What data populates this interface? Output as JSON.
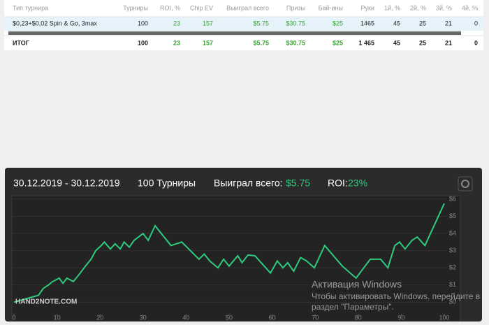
{
  "table": {
    "headers": [
      "Тип турнира",
      "Турниры",
      "ROI, %",
      "Chip EV",
      "Выиграл всего",
      "Призы",
      "Бай-ины",
      "Руки",
      "1й, %",
      "2й, %",
      "3й, %",
      "4й, %"
    ],
    "rows": [
      [
        "$0,23+$0,02 Spin & Go, 3max",
        "100",
        "23",
        "157",
        "$5.75",
        "$30.75",
        "$25",
        "1465",
        "45",
        "25",
        "21",
        "0"
      ],
      [
        "ИТОГ",
        "100",
        "23",
        "157",
        "$5.75",
        "$30.75",
        "$25",
        "1 465",
        "45",
        "25",
        "21",
        "0"
      ]
    ]
  },
  "summary": {
    "period": "30.12.2019 - 30.12.2019",
    "tournaments": "100 Турниры",
    "won_label": "Выиграл всего:",
    "won_value": "$5.75",
    "roi_label": "ROI:",
    "roi_value": "23%"
  },
  "logo": "HAND2NOTE.COM",
  "watermark": {
    "title": "Активация Windows",
    "line1": "Чтобы активировать Windows, перейдите в",
    "line2": "раздел \"Параметры\"."
  },
  "chart_data": {
    "type": "line",
    "color": "#2ecb7e",
    "grid": true,
    "x": [
      0,
      5.7,
      6.8,
      8,
      9,
      10.5,
      11.4,
      12.3,
      13.8,
      15.4,
      16.6,
      17.9,
      19,
      20.3,
      21,
      22.4,
      23.5,
      24.7,
      25.6,
      26.8,
      27.9,
      30,
      31.2,
      32.8,
      36.5,
      39,
      43,
      44.2,
      45.5,
      47.4,
      48.7,
      50,
      52,
      53,
      54.4,
      56,
      59.6,
      61.2,
      62.5,
      63.6,
      65,
      66.6,
      68,
      69.8,
      72.2,
      76.3,
      79.5,
      82.8,
      85.2,
      86.9,
      88.5,
      89.6,
      90.9,
      92.5,
      93.7,
      95.5,
      100
    ],
    "values": [
      0,
      0.4,
      0.8,
      1.0,
      1.2,
      1.4,
      1.1,
      1.4,
      1.2,
      1.7,
      2.1,
      2.5,
      3.0,
      3.3,
      3.5,
      3.1,
      3.4,
      3.1,
      3.5,
      3.2,
      3.6,
      4.0,
      3.6,
      4.45,
      3.3,
      3.5,
      2.5,
      2.8,
      2.4,
      2.0,
      2.5,
      2.1,
      2.7,
      2.3,
      2.75,
      2.7,
      1.7,
      2.4,
      2.0,
      2.3,
      1.8,
      2.6,
      2.4,
      2.0,
      3.3,
      2.1,
      1.4,
      2.5,
      2.5,
      2.0,
      3.3,
      3.5,
      3.1,
      3.6,
      3.8,
      3.3,
      5.75
    ],
    "xlim": [
      0,
      100
    ],
    "xticks": [
      0,
      10,
      20,
      30,
      40,
      50,
      60,
      70,
      80,
      90,
      100
    ],
    "ylim": [
      -0.8,
      6.2
    ],
    "yticks": [
      {
        "value": 0,
        "label": "$0"
      },
      {
        "value": 1,
        "label": "$1"
      },
      {
        "value": 2,
        "label": "$2"
      },
      {
        "value": 3,
        "label": "$3"
      },
      {
        "value": 4,
        "label": "$4"
      },
      {
        "value": 5,
        "label": "$5"
      },
      {
        "value": 6,
        "label": "$6"
      }
    ]
  }
}
